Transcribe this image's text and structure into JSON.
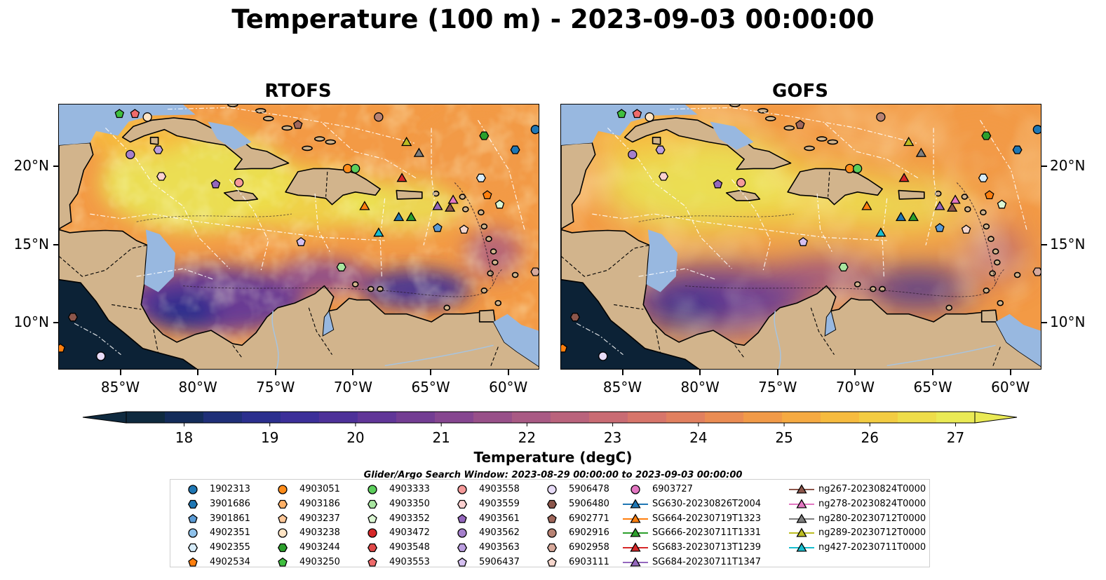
{
  "title": "Temperature (100 m) - 2023-09-03 00:00:00",
  "panels": [
    {
      "title": "RTOFS",
      "variant": "rtofs"
    },
    {
      "title": "GOFS",
      "variant": "gofs"
    }
  ],
  "map_extent": {
    "lon": [
      -89,
      -58
    ],
    "lat": [
      7,
      24
    ]
  },
  "lon_ticks": [
    "85°W",
    "80°W",
    "75°W",
    "70°W",
    "65°W",
    "60°W"
  ],
  "lon_tick_values": [
    -85,
    -80,
    -75,
    -70,
    -65,
    -60
  ],
  "lat_ticks": [
    "10°N",
    "15°N",
    "20°N"
  ],
  "lat_tick_values": [
    10,
    15,
    20
  ],
  "colors": {
    "land": "#d2b48c",
    "shelf": "#98b8e0",
    "deep_cold": "#0c2236",
    "warm_max": "#f0f550"
  },
  "colorbar": {
    "label": "Temperature (degC)",
    "ticks": [
      "18",
      "19",
      "20",
      "21",
      "22",
      "23",
      "24",
      "25",
      "26",
      "27"
    ],
    "range": [
      18,
      27
    ],
    "colors": [
      "#0f2a3f",
      "#142c5a",
      "#1f2f78",
      "#2b2f8e",
      "#3c2f99",
      "#4e3199",
      "#613698",
      "#733d93",
      "#864690",
      "#985089",
      "#a95a84",
      "#ba637c",
      "#c96b73",
      "#d7756a",
      "#e1805f",
      "#ea8c53",
      "#f19a48",
      "#f5aa42",
      "#f6bb3f",
      "#f3cc42",
      "#eedd4a",
      "#eaea55"
    ]
  },
  "search_window": "Glider/Argo Search Window: 2023-08-29 00:00:00 to 2023-09-03 00:00:00",
  "legend": {
    "columns": [
      [
        {
          "label": "1902313",
          "marker": "circle",
          "color": "#1f77b4"
        },
        {
          "label": "3901686",
          "marker": "hexagon",
          "color": "#1f77b4"
        },
        {
          "label": "3901861",
          "marker": "pentagon",
          "color": "#5b9bd5"
        },
        {
          "label": "4902351",
          "marker": "circle",
          "color": "#8ec1ea"
        },
        {
          "label": "4902355",
          "marker": "hexagon",
          "color": "#d6ecfa"
        },
        {
          "label": "4902534",
          "marker": "pentagon",
          "color": "#ff7f0e"
        }
      ],
      [
        {
          "label": "4903051",
          "marker": "circle",
          "color": "#ff8c1a"
        },
        {
          "label": "4903186",
          "marker": "hexagon",
          "color": "#ffb066"
        },
        {
          "label": "4903237",
          "marker": "pentagon",
          "color": "#ffc899"
        },
        {
          "label": "4903238",
          "marker": "circle",
          "color": "#ffe4c4"
        },
        {
          "label": "4903244",
          "marker": "hexagon",
          "color": "#2ca02c"
        },
        {
          "label": "4903250",
          "marker": "pentagon",
          "color": "#3fbf3f"
        }
      ],
      [
        {
          "label": "4903333",
          "marker": "circle",
          "color": "#5ccf5c"
        },
        {
          "label": "4903350",
          "marker": "hexagon",
          "color": "#a8e6a0"
        },
        {
          "label": "4903352",
          "marker": "pentagon",
          "color": "#dcf7d4"
        },
        {
          "label": "4903472",
          "marker": "circle",
          "color": "#d62728"
        },
        {
          "label": "4903548",
          "marker": "hexagon",
          "color": "#e04848"
        },
        {
          "label": "4903553",
          "marker": "pentagon",
          "color": "#ef6b6b"
        }
      ],
      [
        {
          "label": "4903558",
          "marker": "circle",
          "color": "#f59a9a"
        },
        {
          "label": "4903559",
          "marker": "hexagon",
          "color": "#fcd0d0"
        },
        {
          "label": "4903561",
          "marker": "pentagon",
          "color": "#9467bd"
        },
        {
          "label": "4903562",
          "marker": "circle",
          "color": "#a57fcc"
        },
        {
          "label": "4903563",
          "marker": "hexagon",
          "color": "#bb9ee0"
        },
        {
          "label": "5906437",
          "marker": "pentagon",
          "color": "#d5c0f0"
        }
      ],
      [
        {
          "label": "5906478",
          "marker": "circle",
          "color": "#e8dcf8"
        },
        {
          "label": "5906480",
          "marker": "hexagon",
          "color": "#8c564b"
        },
        {
          "label": "6902771",
          "marker": "pentagon",
          "color": "#a0675b"
        },
        {
          "label": "6902916",
          "marker": "circle",
          "color": "#b88273"
        },
        {
          "label": "6902958",
          "marker": "hexagon",
          "color": "#d7a99b"
        },
        {
          "label": "6903111",
          "marker": "pentagon",
          "color": "#f5d6cc"
        }
      ],
      [
        {
          "label": "6903727",
          "marker": "circle",
          "color": "#e377c2"
        },
        {
          "label": "SG630-20230826T2004",
          "marker": "triangle",
          "color": "#1f77b4"
        },
        {
          "label": "SG664-20230719T1323",
          "marker": "triangle",
          "color": "#ff7f0e"
        },
        {
          "label": "SG666-20230711T1331",
          "marker": "triangle",
          "color": "#2ca02c"
        },
        {
          "label": "SG683-20230713T1239",
          "marker": "triangle",
          "color": "#d62728"
        },
        {
          "label": "SG684-20230711T1347",
          "marker": "triangle",
          "color": "#9467bd"
        }
      ],
      [
        {
          "label": "ng267-20230824T0000",
          "marker": "triangle",
          "color": "#8c564b"
        },
        {
          "label": "ng278-20230824T0000",
          "marker": "triangle",
          "color": "#e377c2"
        },
        {
          "label": "ng280-20230712T0000",
          "marker": "triangle",
          "color": "#7f7f7f"
        },
        {
          "label": "ng289-20230712T0000",
          "marker": "triangle",
          "color": "#bcbd22"
        },
        {
          "label": "ng427-20230711T0000",
          "marker": "triangle",
          "color": "#17becf"
        }
      ]
    ]
  },
  "map_markers": [
    {
      "lon": -85.1,
      "lat": 23.4,
      "marker": "pentagon",
      "color": "#3fbf3f"
    },
    {
      "lon": -84.1,
      "lat": 23.4,
      "marker": "pentagon",
      "color": "#ef6b6b"
    },
    {
      "lon": -83.3,
      "lat": 23.2,
      "marker": "circle",
      "color": "#ffe4c4"
    },
    {
      "lon": -73.6,
      "lat": 22.7,
      "marker": "pentagon",
      "color": "#a0675b"
    },
    {
      "lon": -68.4,
      "lat": 23.2,
      "marker": "circle",
      "color": "#b88273"
    },
    {
      "lon": -84.4,
      "lat": 20.8,
      "marker": "circle",
      "color": "#a57fcc"
    },
    {
      "lon": -82.6,
      "lat": 21.1,
      "marker": "hexagon",
      "color": "#bb9ee0"
    },
    {
      "lon": -82.4,
      "lat": 19.4,
      "marker": "hexagon",
      "color": "#fcd0d0"
    },
    {
      "lon": -78.9,
      "lat": 18.9,
      "marker": "pentagon",
      "color": "#9467bd"
    },
    {
      "lon": -77.4,
      "lat": 19.0,
      "marker": "circle",
      "color": "#f59a9a"
    },
    {
      "lon": -70.4,
      "lat": 19.9,
      "marker": "circle",
      "color": "#ff8c1a"
    },
    {
      "lon": -69.9,
      "lat": 19.9,
      "marker": "circle",
      "color": "#5ccf5c"
    },
    {
      "lon": -66.6,
      "lat": 21.6,
      "marker": "triangle",
      "color": "#bcbd22"
    },
    {
      "lon": -65.8,
      "lat": 20.9,
      "marker": "triangle",
      "color": "#7f7f7f"
    },
    {
      "lon": -61.6,
      "lat": 22.0,
      "marker": "hexagon",
      "color": "#2ca02c"
    },
    {
      "lon": -59.6,
      "lat": 21.1,
      "marker": "hexagon",
      "color": "#1f77b4"
    },
    {
      "lon": -58.3,
      "lat": 22.4,
      "marker": "circle",
      "color": "#1f77b4"
    },
    {
      "lon": -66.9,
      "lat": 19.3,
      "marker": "triangle",
      "color": "#d62728"
    },
    {
      "lon": -61.8,
      "lat": 19.3,
      "marker": "hexagon",
      "color": "#d6ecfa"
    },
    {
      "lon": -61.4,
      "lat": 18.2,
      "marker": "pentagon",
      "color": "#ff7f0e"
    },
    {
      "lon": -69.3,
      "lat": 17.5,
      "marker": "triangle",
      "color": "#ff7f0e"
    },
    {
      "lon": -64.6,
      "lat": 17.5,
      "marker": "triangle",
      "color": "#9467bd"
    },
    {
      "lon": -63.8,
      "lat": 17.4,
      "marker": "triangle",
      "color": "#8c564b"
    },
    {
      "lon": -63.6,
      "lat": 17.9,
      "marker": "triangle",
      "color": "#e377c2"
    },
    {
      "lon": -60.6,
      "lat": 17.6,
      "marker": "pentagon",
      "color": "#dcf7d4"
    },
    {
      "lon": -67.1,
      "lat": 16.8,
      "marker": "triangle",
      "color": "#1f77b4"
    },
    {
      "lon": -66.3,
      "lat": 16.8,
      "marker": "triangle",
      "color": "#2ca02c"
    },
    {
      "lon": -68.4,
      "lat": 15.8,
      "marker": "triangle",
      "color": "#17becf"
    },
    {
      "lon": -64.6,
      "lat": 16.1,
      "marker": "pentagon",
      "color": "#5b9bd5"
    },
    {
      "lon": -62.9,
      "lat": 16.0,
      "marker": "pentagon",
      "color": "#f5d6cc"
    },
    {
      "lon": -73.4,
      "lat": 15.2,
      "marker": "pentagon",
      "color": "#d5c0f0"
    },
    {
      "lon": -70.8,
      "lat": 13.6,
      "marker": "hexagon",
      "color": "#a8e6a0"
    },
    {
      "lon": -58.3,
      "lat": 13.3,
      "marker": "hexagon",
      "color": "#d7a99b"
    },
    {
      "lon": -88.1,
      "lat": 10.4,
      "marker": "hexagon",
      "color": "#8c564b"
    },
    {
      "lon": -88.9,
      "lat": 8.4,
      "marker": "pentagon",
      "color": "#ff7f0e"
    },
    {
      "lon": -86.3,
      "lat": 7.9,
      "marker": "circle",
      "color": "#e8dcf8"
    }
  ]
}
